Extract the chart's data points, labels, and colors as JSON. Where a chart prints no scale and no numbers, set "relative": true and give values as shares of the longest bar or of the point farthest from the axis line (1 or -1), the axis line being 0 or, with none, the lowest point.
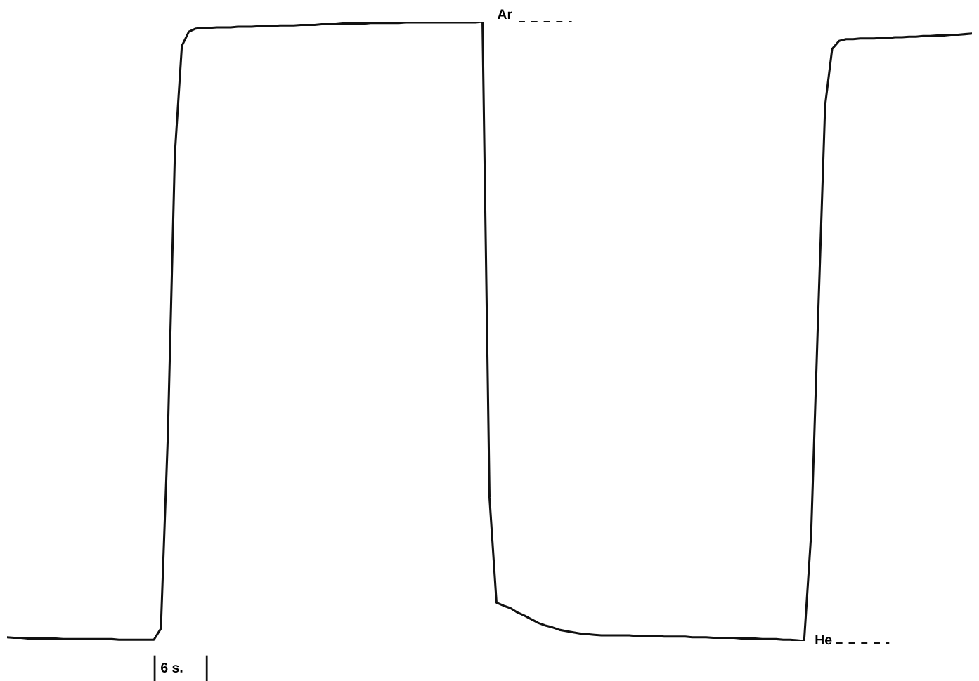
{
  "chart_data": {
    "type": "line",
    "relative": true,
    "tick_labels": false,
    "marker": "none",
    "line_style": "solid",
    "categories": [
      null,
      null,
      null,
      null,
      null,
      null,
      null,
      null,
      null,
      null,
      null,
      null,
      null,
      null,
      null,
      null,
      null,
      null,
      null,
      null,
      null,
      null,
      null,
      null,
      null,
      null,
      null,
      null,
      null,
      null,
      null,
      null,
      null,
      null,
      null,
      null,
      null,
      null,
      null,
      null,
      null,
      null,
      null,
      null,
      null,
      null,
      null,
      null,
      null,
      null,
      null,
      null,
      null,
      null,
      null,
      null,
      null,
      null,
      null,
      null,
      null,
      null,
      null,
      null,
      null,
      null,
      null,
      null,
      null,
      null,
      null,
      null,
      null,
      null,
      null,
      null,
      null,
      null,
      null,
      null,
      null,
      null,
      null,
      null,
      null,
      null,
      null,
      null,
      null,
      null,
      null,
      null,
      null,
      null,
      null,
      null,
      null,
      null,
      null,
      null,
      null,
      null,
      null,
      null,
      null,
      null,
      null,
      null,
      null,
      null,
      null,
      null,
      null,
      null,
      null,
      null,
      null,
      null,
      null,
      null,
      null,
      null,
      null,
      null,
      null,
      null,
      null,
      null,
      null,
      null,
      null,
      null,
      null,
      null,
      null,
      null,
      null,
      null,
      null
    ],
    "series": [
      {
        "color": "#111111",
        "values": [
          0.006,
          0.005,
          0.005,
          0.004,
          0.004,
          0.004,
          0.004,
          0.004,
          0.003,
          0.003,
          0.003,
          0.003,
          0.003,
          0.003,
          0.003,
          0.003,
          0.002,
          0.002,
          0.002,
          0.002,
          0.002,
          0.002,
          0.02,
          0.332,
          0.786,
          0.961,
          0.984,
          0.989,
          0.99,
          0.99,
          0.991,
          0.991,
          0.991,
          0.992,
          0.992,
          0.992,
          0.993,
          0.993,
          0.993,
          0.994,
          0.994,
          0.994,
          0.995,
          0.995,
          0.995,
          0.996,
          0.996,
          0.996,
          0.997,
          0.997,
          0.997,
          0.997,
          0.998,
          0.998,
          0.998,
          0.998,
          0.998,
          0.999,
          0.999,
          0.999,
          0.999,
          0.999,
          0.999,
          0.999,
          0.999,
          0.999,
          0.999,
          0.999,
          1,
          0.232,
          0.062,
          0.057,
          0.053,
          0.046,
          0.041,
          0.035,
          0.029,
          0.025,
          0.022,
          0.018,
          0.016,
          0.014,
          0.012,
          0.011,
          0.01,
          0.009,
          0.009,
          0.009,
          0.009,
          0.009,
          0.008,
          0.008,
          0.008,
          0.008,
          0.007,
          0.007,
          0.007,
          0.007,
          0.006,
          0.006,
          0.006,
          0.005,
          0.005,
          0.005,
          0.005,
          0.004,
          0.004,
          0.004,
          0.003,
          0.003,
          0.003,
          0.002,
          0.002,
          0.001,
          0,
          0.173,
          0.525,
          0.865,
          0.956,
          0.969,
          0.972,
          0.972,
          0.973,
          0.973,
          0.973,
          0.974,
          0.974,
          0.975,
          0.975,
          0.976,
          0.976,
          0.977,
          0.977,
          0.978,
          0.978,
          0.979,
          0.979,
          0.98,
          0.981
        ]
      }
    ],
    "annotations": [
      "Ar",
      "He",
      "6 s."
    ]
  }
}
